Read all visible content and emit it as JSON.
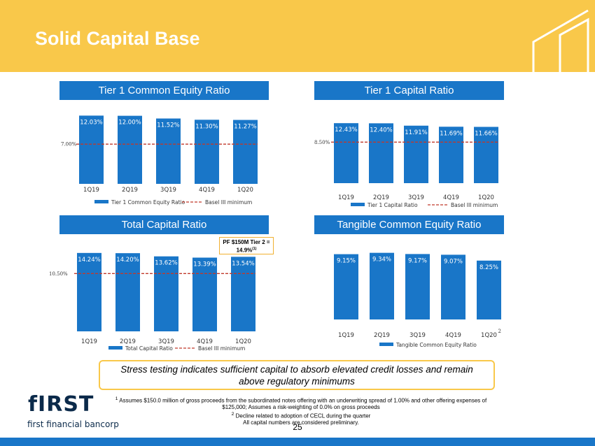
{
  "slide": {
    "title": "Solid Capital Base",
    "page_number": "25"
  },
  "callout": {
    "line1": "PF $150M Tier 2 =",
    "line2": "14.9%",
    "sup": "(1)"
  },
  "stress_text": "Stress testing indicates sufficient capital to absorb elevated credit losses and remain above regulatory minimums",
  "footnotes": {
    "n1_marker": "1",
    "n1": "Assumes $150.0 million of gross proceeds from the subordinated notes offering with an underwriting spread of 1.00% and other offering expenses of $125,000; Assumes a risk-weighting of 0.0% on gross proceeds",
    "n2_marker": "2",
    "n2": "Decline related to adoption of CECL during the quarter",
    "n3": "All capital numbers are considered preliminary."
  },
  "brand": {
    "name": "fIRST",
    "sub": "first financial bancorp"
  },
  "colors": {
    "accent_yellow": "#f9c84a",
    "bar_blue": "#1976c8",
    "reference_red": "#c0392b"
  },
  "chart_data": [
    {
      "type": "bar",
      "title": "Tier 1 Common Equity Ratio",
      "categories": [
        "1Q19",
        "2Q19",
        "3Q19",
        "4Q19",
        "1Q20"
      ],
      "values": [
        12.03,
        12.0,
        11.52,
        11.3,
        11.27
      ],
      "value_labels": [
        "12.03%",
        "12.00%",
        "11.52%",
        "11.30%",
        "11.27%"
      ],
      "reference": {
        "value": 7.0,
        "label": "7.00%"
      },
      "legend": [
        "Tier 1 Common Equity Ratio",
        "Basel III minimum"
      ],
      "category_note": ""
    },
    {
      "type": "bar",
      "title": "Tier 1 Capital Ratio",
      "categories": [
        "1Q19",
        "2Q19",
        "3Q19",
        "4Q19",
        "1Q20"
      ],
      "values": [
        12.43,
        12.4,
        11.91,
        11.69,
        11.66
      ],
      "value_labels": [
        "12.43%",
        "12.40%",
        "11.91%",
        "11.69%",
        "11.66%"
      ],
      "reference": {
        "value": 8.5,
        "label": "8.50%"
      },
      "legend": [
        "Tier 1 Capital Ratio",
        "Basel III minimum"
      ],
      "category_note": ""
    },
    {
      "type": "bar",
      "title": "Total Capital Ratio",
      "categories": [
        "1Q19",
        "2Q19",
        "3Q19",
        "4Q19",
        "1Q20"
      ],
      "values": [
        14.24,
        14.2,
        13.62,
        13.39,
        13.54
      ],
      "value_labels": [
        "14.24%",
        "14.20%",
        "13.62%",
        "13.39%",
        "13.54%"
      ],
      "reference": {
        "value": 10.5,
        "label": "10.50%"
      },
      "legend": [
        "Total Capital Ratio",
        "Basel III minimum"
      ],
      "category_note": ""
    },
    {
      "type": "bar",
      "title": "Tangible Common Equity Ratio",
      "categories": [
        "1Q19",
        "2Q19",
        "3Q19",
        "4Q19",
        "1Q20"
      ],
      "values": [
        9.15,
        9.34,
        9.17,
        9.07,
        8.25
      ],
      "value_labels": [
        "9.15%",
        "9.34%",
        "9.17%",
        "9.07%",
        "8.25%"
      ],
      "reference": null,
      "legend": [
        "Tangible Common Equity Ratio"
      ],
      "category_note": "2"
    }
  ]
}
